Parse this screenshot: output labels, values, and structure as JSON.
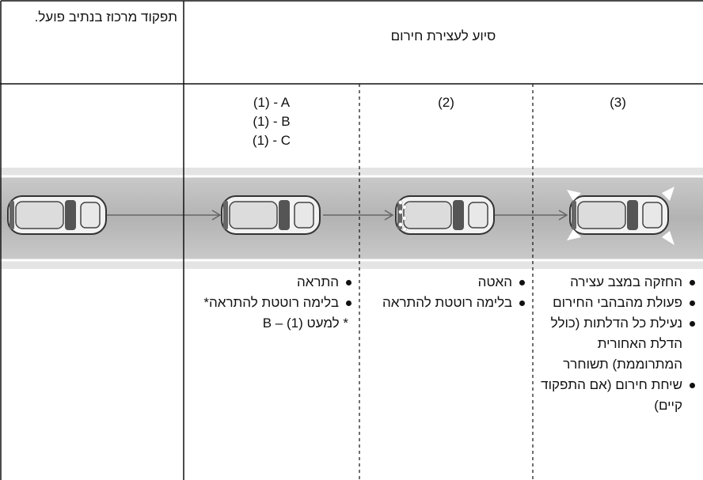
{
  "header": {
    "left": "תפקוד מרכוז בנתיב פועל.",
    "right": "סיוע לעצירת חירום"
  },
  "phases": [
    {
      "lines": [
        "(1) - A",
        "(1) - B",
        "(1) - C"
      ]
    },
    {
      "lines": [
        "(2)"
      ]
    },
    {
      "lines": [
        "(3)"
      ]
    }
  ],
  "actions": [
    {
      "items": [
        "התראה",
        "בלימה רוטטת להתראה*"
      ],
      "note": "* למעט B – (1)"
    },
    {
      "items": [
        "האטה",
        "בלימה רוטטת להתראה"
      ]
    },
    {
      "items": [
        "החזקה במצב עצירה",
        "פעולת מהבהבי החירום",
        "נעילת כל הדלתות (כולל הדלת האחורית המתרוממת) תשוחרר",
        "שיחת חירום (אם התפקוד קיים)"
      ]
    }
  ]
}
